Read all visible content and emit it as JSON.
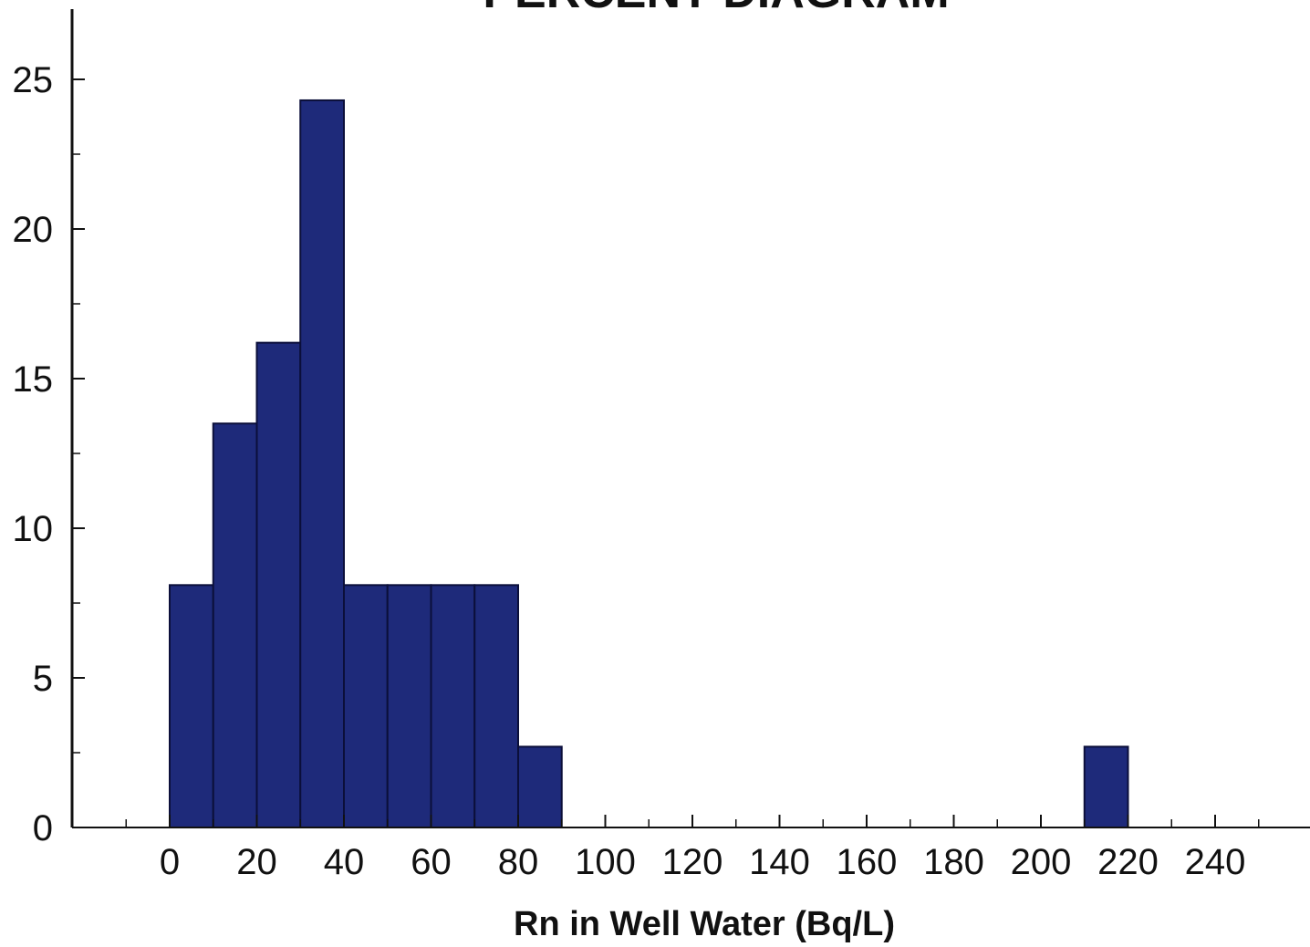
{
  "chart_data": {
    "type": "bar",
    "title": "PERCENT DIAGRAM",
    "xlabel": "Rn in Well Water (Bq/L)",
    "ylabel": "",
    "bin_width": 10,
    "bins": [
      {
        "start": 0,
        "end": 10,
        "value": 8.1
      },
      {
        "start": 10,
        "end": 20,
        "value": 13.5
      },
      {
        "start": 20,
        "end": 30,
        "value": 16.2
      },
      {
        "start": 30,
        "end": 40,
        "value": 24.3
      },
      {
        "start": 40,
        "end": 50,
        "value": 8.1
      },
      {
        "start": 50,
        "end": 60,
        "value": 8.1
      },
      {
        "start": 60,
        "end": 70,
        "value": 8.1
      },
      {
        "start": 70,
        "end": 80,
        "value": 8.1
      },
      {
        "start": 80,
        "end": 90,
        "value": 2.7
      },
      {
        "start": 210,
        "end": 220,
        "value": 2.7
      }
    ],
    "xlim": [
      -20,
      265
    ],
    "ylim": [
      0,
      27
    ],
    "x_ticks": [
      0,
      20,
      40,
      60,
      80,
      100,
      120,
      140,
      160,
      180,
      200,
      220,
      240
    ],
    "x_tick_labels": [
      "0",
      "20",
      "40",
      "60",
      "80",
      "100",
      "120",
      "140",
      "160",
      "180",
      "200",
      "220",
      "240"
    ],
    "y_ticks": [
      0,
      5,
      10,
      15,
      20,
      25
    ],
    "y_tick_labels": [
      "0",
      "5",
      "10",
      "15",
      "20",
      "25"
    ],
    "grid": false,
    "bar_color": "#1e2a7a",
    "axis_color": "#111111"
  }
}
